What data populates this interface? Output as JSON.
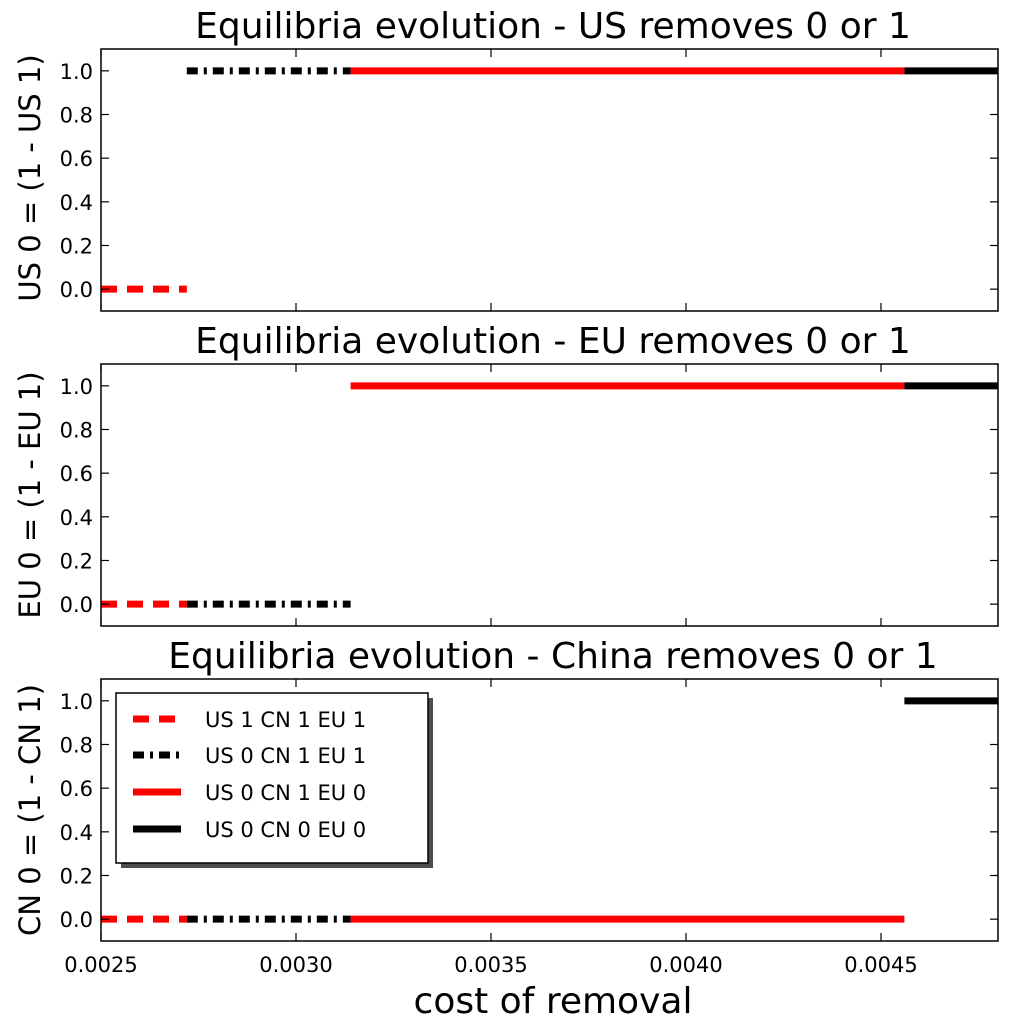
{
  "chart_data": [
    {
      "type": "line",
      "title": "Equilibria evolution - US removes 0 or 1",
      "ylabel": "US 0 = (1 - US 1)",
      "xlabel": "",
      "xlim": [
        0.0025,
        0.0048
      ],
      "ylim": [
        -0.1,
        1.1
      ],
      "yticks": [
        "0.0",
        "0.2",
        "0.4",
        "0.6",
        "0.8",
        "1.0"
      ],
      "ytick_values": [
        0.0,
        0.2,
        0.4,
        0.6,
        0.8,
        1.0
      ],
      "xticks": [],
      "series": [
        {
          "name": "US 1 CN 1 EU 1",
          "x": [
            0.0025,
            0.00272
          ],
          "y": [
            0,
            0
          ]
        },
        {
          "name": "US 0 CN 1 EU 1",
          "x": [
            0.00272,
            0.00314
          ],
          "y": [
            1,
            1
          ]
        },
        {
          "name": "US 0 CN 1 EU 0",
          "x": [
            0.00314,
            0.00456
          ],
          "y": [
            1,
            1
          ]
        },
        {
          "name": "US 0 CN 0 EU 0",
          "x": [
            0.00456,
            0.0048
          ],
          "y": [
            1,
            1
          ]
        }
      ]
    },
    {
      "type": "line",
      "title": "Equilibria evolution - EU removes 0 or 1",
      "ylabel": "EU 0 = (1 - EU 1)",
      "xlabel": "",
      "xlim": [
        0.0025,
        0.0048
      ],
      "ylim": [
        -0.1,
        1.1
      ],
      "yticks": [
        "0.0",
        "0.2",
        "0.4",
        "0.6",
        "0.8",
        "1.0"
      ],
      "ytick_values": [
        0.0,
        0.2,
        0.4,
        0.6,
        0.8,
        1.0
      ],
      "xticks": [],
      "series": [
        {
          "name": "US 1 CN 1 EU 1",
          "x": [
            0.0025,
            0.00272
          ],
          "y": [
            0,
            0
          ]
        },
        {
          "name": "US 0 CN 1 EU 1",
          "x": [
            0.00272,
            0.00314
          ],
          "y": [
            0,
            0
          ]
        },
        {
          "name": "US 0 CN 1 EU 0",
          "x": [
            0.00314,
            0.00456
          ],
          "y": [
            1,
            1
          ]
        },
        {
          "name": "US 0 CN 0 EU 0",
          "x": [
            0.00456,
            0.0048
          ],
          "y": [
            1,
            1
          ]
        }
      ]
    },
    {
      "type": "line",
      "title": "Equilibria evolution - China removes 0 or 1",
      "ylabel": "CN 0 = (1 - CN 1)",
      "xlabel": "cost of removal",
      "xlim": [
        0.0025,
        0.0048
      ],
      "ylim": [
        -0.1,
        1.1
      ],
      "yticks": [
        "0.0",
        "0.2",
        "0.4",
        "0.6",
        "0.8",
        "1.0"
      ],
      "ytick_values": [
        0.0,
        0.2,
        0.4,
        0.6,
        0.8,
        1.0
      ],
      "xticks": [
        "0.0025",
        "0.0030",
        "0.0035",
        "0.0040",
        "0.0045"
      ],
      "xtick_values": [
        0.0025,
        0.003,
        0.0035,
        0.004,
        0.0045
      ],
      "legend": {
        "placement": "upper-left",
        "entries": [
          "US 1 CN 1 EU 1",
          "US 0 CN 1 EU 1",
          "US 0 CN 1 EU 0",
          "US 0 CN 0 EU 0"
        ]
      },
      "series": [
        {
          "name": "US 1 CN 1 EU 1",
          "x": [
            0.0025,
            0.00272
          ],
          "y": [
            0,
            0
          ]
        },
        {
          "name": "US 0 CN 1 EU 1",
          "x": [
            0.00272,
            0.00314
          ],
          "y": [
            0,
            0
          ]
        },
        {
          "name": "US 0 CN 1 EU 0",
          "x": [
            0.00314,
            0.00456
          ],
          "y": [
            0,
            0
          ]
        },
        {
          "name": "US 0 CN 0 EU 0",
          "x": [
            0.00456,
            0.0048
          ],
          "y": [
            1,
            1
          ]
        }
      ]
    }
  ],
  "styles": {
    "US 1 CN 1 EU 1": {
      "color": "#ff0000",
      "dash": "dashed"
    },
    "US 0 CN 1 EU 1": {
      "color": "#000000",
      "dash": "dashdot"
    },
    "US 0 CN 1 EU 0": {
      "color": "#ff0000",
      "dash": "solid"
    },
    "US 0 CN 0 EU 0": {
      "color": "#000000",
      "dash": "solid"
    }
  }
}
